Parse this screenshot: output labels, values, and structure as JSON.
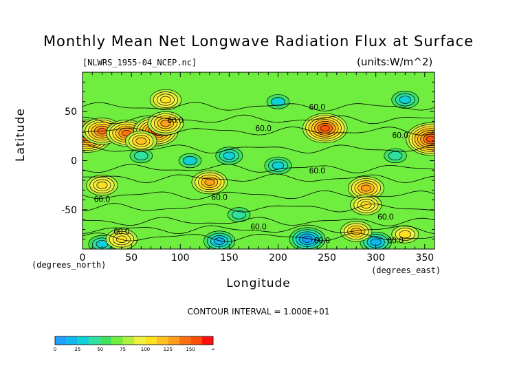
{
  "chart_data": {
    "type": "heatmap",
    "title": "Monthly Mean Net Longwave Radiation Flux at Surface",
    "source_file": "[NLWRS_1955-04_NCEP.nc]",
    "units": "(units:W/m^2)",
    "xlabel": "Longitude",
    "ylabel": "Latitude",
    "x_unit_label": "(degrees_east)",
    "y_unit_label": "(degrees_north)",
    "xlim": [
      0,
      360
    ],
    "ylim": [
      -90,
      90
    ],
    "x_ticks": [
      0,
      50,
      100,
      150,
      200,
      250,
      300,
      350
    ],
    "y_ticks": [
      50,
      0,
      -50
    ],
    "contour_interval_text": "CONTOUR INTERVAL = 1.000E+01",
    "contour_labels": [
      {
        "text": "60.0",
        "lon": 240,
        "lat": 52
      },
      {
        "text": "60.0",
        "lon": 95,
        "lat": 38
      },
      {
        "text": "60.0",
        "lon": 185,
        "lat": 30
      },
      {
        "text": "60.0",
        "lon": 325,
        "lat": 23
      },
      {
        "text": "60.0",
        "lon": 240,
        "lat": -13
      },
      {
        "text": "60.0",
        "lon": 20,
        "lat": -42
      },
      {
        "text": "60.0",
        "lon": 140,
        "lat": -40
      },
      {
        "text": "60.0",
        "lon": 310,
        "lat": -60
      },
      {
        "text": "60.0",
        "lon": 180,
        "lat": -70
      },
      {
        "text": "60.0",
        "lon": 245,
        "lat": -84
      },
      {
        "text": "60.0",
        "lon": 320,
        "lat": -84
      },
      {
        "text": "60.0",
        "lon": 40,
        "lat": -75
      }
    ],
    "colorbar": {
      "boundary_labels": [
        "0",
        "25",
        "50",
        "75",
        "100",
        "125",
        "150",
        "∞"
      ],
      "colors": [
        "#1ea0ff",
        "#10b8ee",
        "#10d0d8",
        "#30e0a0",
        "#40e060",
        "#70ee40",
        "#b0f040",
        "#f0f040",
        "#ffe020",
        "#ffc020",
        "#ffa018",
        "#ff7010",
        "#ff5008",
        "#ff1010"
      ]
    },
    "hotspots": [
      {
        "lon": 5,
        "lat": 25,
        "value": 160
      },
      {
        "lon": 20,
        "lat": 30,
        "value": 140
      },
      {
        "lon": 45,
        "lat": 28,
        "value": 140
      },
      {
        "lon": 75,
        "lat": 30,
        "value": 150
      },
      {
        "lon": 85,
        "lat": 38,
        "value": 130
      },
      {
        "lon": 60,
        "lat": 20,
        "value": 120
      },
      {
        "lon": 248,
        "lat": 33,
        "value": 150
      },
      {
        "lon": 356,
        "lat": 22,
        "value": 160
      },
      {
        "lon": 130,
        "lat": -22,
        "value": 125
      },
      {
        "lon": 290,
        "lat": -28,
        "value": 130
      },
      {
        "lon": 20,
        "lat": -25,
        "value": 110
      },
      {
        "lon": 290,
        "lat": -45,
        "value": 110
      },
      {
        "lon": 85,
        "lat": 62,
        "value": 110
      },
      {
        "lon": 280,
        "lat": -72,
        "value": 115
      },
      {
        "lon": 40,
        "lat": -80,
        "value": 110
      },
      {
        "lon": 330,
        "lat": -75,
        "value": 105
      }
    ],
    "coldspots": [
      {
        "lon": 200,
        "lat": -5,
        "value": 25
      },
      {
        "lon": 150,
        "lat": 5,
        "value": 30
      },
      {
        "lon": 110,
        "lat": 0,
        "value": 35
      },
      {
        "lon": 320,
        "lat": 5,
        "value": 40
      },
      {
        "lon": 200,
        "lat": 60,
        "value": 35
      },
      {
        "lon": 330,
        "lat": 62,
        "value": 30
      },
      {
        "lon": 160,
        "lat": -55,
        "value": 40
      },
      {
        "lon": 230,
        "lat": -80,
        "value": 5
      },
      {
        "lon": 140,
        "lat": -82,
        "value": 20
      },
      {
        "lon": 300,
        "lat": -83,
        "value": 15
      },
      {
        "lon": 20,
        "lat": -85,
        "value": 30
      },
      {
        "lon": 60,
        "lat": 5,
        "value": 45
      }
    ]
  }
}
